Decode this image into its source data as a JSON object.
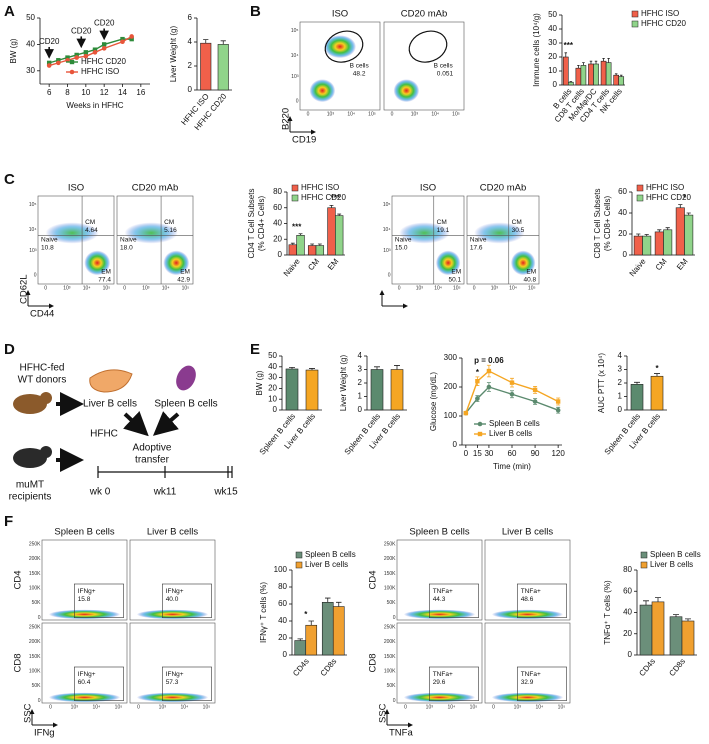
{
  "panel_labels": [
    "A",
    "B",
    "C",
    "D",
    "E",
    "F"
  ],
  "flow_ticks": {
    "log": [
      "0",
      "10³",
      "10⁴",
      "10⁵"
    ],
    "linear": [
      "0",
      "50K",
      "100K",
      "150K",
      "200K",
      "250K"
    ]
  },
  "flow_panels": [
    {
      "headers": [
        "ISO",
        "CD20 mAb"
      ],
      "y_axis": "B220",
      "x_axis": "CD19",
      "plots": [
        {
          "gates": [
            {
              "name": "B cells",
              "value": "48.2"
            }
          ]
        },
        {
          "gates": [
            {
              "name": "B cells",
              "value": "0.051"
            }
          ]
        }
      ]
    },
    {
      "headers": [
        "ISO",
        "CD20 mAb"
      ],
      "y_axis": "CD62L",
      "x_axis": "CD44",
      "plots": [
        {
          "gates": [
            {
              "name": "Naive",
              "value": "10.8"
            },
            {
              "name": "CM",
              "value": "4.64"
            },
            {
              "name": "EM",
              "value": "77.4"
            }
          ]
        },
        {
          "gates": [
            {
              "name": "Naive",
              "value": "18.0"
            },
            {
              "name": "CM",
              "value": "5.16"
            },
            {
              "name": "EM",
              "value": "42.9"
            }
          ]
        }
      ]
    },
    {
      "headers": [
        "ISO",
        "CD20 mAb"
      ],
      "plots": [
        {
          "gates": [
            {
              "name": "Naive",
              "value": "15.0"
            },
            {
              "name": "CM",
              "value": "19.1"
            },
            {
              "name": "EM",
              "value": "50.1"
            }
          ]
        },
        {
          "gates": [
            {
              "name": "Naive",
              "value": "17.6"
            },
            {
              "name": "CM",
              "value": "30.5"
            },
            {
              "name": "EM",
              "value": "40.8"
            }
          ]
        }
      ]
    },
    {
      "headers": [
        "Spleen B cells",
        "Liver B cells"
      ],
      "row_labels": [
        "CD4",
        "CD8"
      ],
      "y_axis": "SSC",
      "x_axis": "IFNg",
      "plots": [
        {
          "gates": [
            {
              "name": "IFNg+",
              "value": "15.8"
            }
          ]
        },
        {
          "gates": [
            {
              "name": "IFNg+",
              "value": "40.0"
            }
          ]
        },
        {
          "gates": [
            {
              "name": "IFNg+",
              "value": "60.4"
            }
          ]
        },
        {
          "gates": [
            {
              "name": "IFNg+",
              "value": "57.3"
            }
          ]
        }
      ]
    },
    {
      "headers": [
        "Spleen B cells",
        "Liver B cells"
      ],
      "row_labels": [
        "CD4",
        "CD8"
      ],
      "y_axis": "SSC",
      "x_axis": "TNFa",
      "plots": [
        {
          "gates": [
            {
              "name": "TNFa+",
              "value": "44.3"
            }
          ]
        },
        {
          "gates": [
            {
              "name": "TNFa+",
              "value": "48.6"
            }
          ]
        },
        {
          "gates": [
            {
              "name": "TNFa+",
              "value": "29.6"
            }
          ]
        },
        {
          "gates": [
            {
              "name": "TNFa+",
              "value": "32.9"
            }
          ]
        }
      ]
    }
  ],
  "diagram": {
    "donors": [
      "HFHC-fed",
      "WT donors"
    ],
    "liver": "Liver B cells",
    "spleen": "Spleen B cells",
    "transfer": [
      "Adoptive",
      "transfer"
    ],
    "diet": "HFHC",
    "recipients": [
      "muMT",
      "recipients"
    ],
    "timeline": [
      "wk 0",
      "wk11",
      "wk15"
    ]
  },
  "chart_data": [
    {
      "type": "line",
      "ylabel": "BW (g)",
      "xlabel": "Weeks in HFHC",
      "x": [
        6,
        7,
        8,
        9,
        10,
        11,
        12,
        14,
        15
      ],
      "xlim": [
        5,
        17
      ],
      "xticks": [
        6,
        8,
        10,
        12,
        14,
        16
      ],
      "ylim": [
        25,
        50
      ],
      "yticks": [
        30,
        40,
        50
      ],
      "series": [
        {
          "name": "HFHC CD20",
          "color": "#2e8b3a",
          "marker": "square",
          "values": [
            33,
            34,
            35,
            36,
            37,
            38,
            40,
            42,
            42
          ]
        },
        {
          "name": "HFHC ISO",
          "color": "#e8553a",
          "marker": "circle",
          "values": [
            32,
            33,
            34,
            35,
            35.5,
            37,
            38.5,
            41,
            43
          ]
        }
      ],
      "annotations": [
        "CD20",
        "CD20",
        "CD20"
      ]
    },
    {
      "type": "bar",
      "ylabel": "Liver Weight (g)",
      "categories": [
        "HFHC ISO",
        "HFHC CD20"
      ],
      "values": [
        3.9,
        3.8
      ],
      "errors": [
        0.3,
        0.3
      ],
      "colors": [
        "#f0604a",
        "#90d48a"
      ],
      "ylim": [
        0,
        6
      ],
      "yticks": [
        0,
        2,
        4,
        6
      ]
    },
    {
      "type": "bar",
      "ylabel": "Immune cells (10⁴/g)",
      "categories": [
        "B cells",
        "CD8 T cells",
        "Mo/Mφ/DC",
        "CD4 T cells",
        "NK cells"
      ],
      "series": [
        {
          "name": "HFHC ISO",
          "color": "#f0604a",
          "values": [
            20,
            12,
            15,
            17,
            7
          ],
          "errors": [
            3,
            2,
            2,
            2,
            1
          ]
        },
        {
          "name": "HFHC CD20",
          "color": "#90d48a",
          "values": [
            2,
            14,
            15,
            16,
            6
          ],
          "errors": [
            0.5,
            2,
            2,
            3,
            1
          ]
        }
      ],
      "ylim": [
        0,
        50
      ],
      "yticks": [
        0,
        10,
        20,
        30,
        40,
        50
      ],
      "annotations": [
        "***"
      ]
    },
    {
      "type": "bar",
      "ylabel": [
        "CD4 T Cell Subsets",
        "(% CD4+ Cells)"
      ],
      "categories": [
        "Naive",
        "CM",
        "EM"
      ],
      "series": [
        {
          "name": "HFHC ISO",
          "color": "#f0604a",
          "values": [
            13,
            12,
            60
          ],
          "errors": [
            2,
            2,
            3
          ]
        },
        {
          "name": "HFHC CD20",
          "color": "#90d48a",
          "values": [
            25,
            12,
            50
          ],
          "errors": [
            2,
            2,
            2
          ]
        }
      ],
      "ylim": [
        0,
        80
      ],
      "yticks": [
        0,
        20,
        40,
        60,
        80
      ],
      "annotations": [
        "***",
        "***"
      ]
    },
    {
      "type": "bar",
      "ylabel": [
        "CD8 T Cell Subsets",
        "(% CD8+ Cells)"
      ],
      "categories": [
        "Naive",
        "CM",
        "EM"
      ],
      "series": [
        {
          "name": "HFHC ISO",
          "color": "#f0604a",
          "values": [
            18,
            22,
            45
          ],
          "errors": [
            2,
            2,
            3
          ]
        },
        {
          "name": "HFHC CD20",
          "color": "#90d48a",
          "values": [
            18,
            24,
            38
          ],
          "errors": [
            1.5,
            2,
            2
          ]
        }
      ],
      "ylim": [
        0,
        60
      ],
      "yticks": [
        0,
        20,
        40,
        60
      ],
      "annotations": [
        "*"
      ]
    },
    {
      "type": "bar",
      "ylabel": "BW (g)",
      "categories": [
        "Spleen B cells",
        "Liver B cells"
      ],
      "values": [
        38,
        37
      ],
      "errors": [
        1.5,
        1.5
      ],
      "colors": [
        "#5b8a6e",
        "#f5a623"
      ],
      "ylim": [
        0,
        50
      ],
      "yticks": [
        0,
        10,
        20,
        30,
        40,
        50
      ]
    },
    {
      "type": "bar",
      "ylabel": "Liver Weight (g)",
      "categories": [
        "Spleen B cells",
        "Liver B cells"
      ],
      "values": [
        3,
        3
      ],
      "errors": [
        0.2,
        0.3
      ],
      "colors": [
        "#5b8a6e",
        "#f5a623"
      ],
      "ylim": [
        0,
        4
      ],
      "yticks": [
        0,
        1,
        2,
        3,
        4
      ]
    },
    {
      "type": "line",
      "ylabel": "Glucose (mg/dL)",
      "xlabel": "Time (min)",
      "x": [
        0,
        15,
        30,
        60,
        90,
        120
      ],
      "xlim": [
        -5,
        125
      ],
      "xticks": [
        0,
        15,
        30,
        60,
        90,
        120
      ],
      "ylim": [
        0,
        300
      ],
      "yticks": [
        0,
        100,
        200,
        300
      ],
      "series": [
        {
          "name": "Spleen B cells",
          "color": "#5b8a6e",
          "marker": "circle",
          "values": [
            110,
            160,
            200,
            175,
            150,
            120
          ],
          "errors": [
            5,
            10,
            15,
            12,
            10,
            10
          ]
        },
        {
          "name": "Liver B cells",
          "color": "#f5a623",
          "marker": "square",
          "values": [
            110,
            220,
            255,
            215,
            190,
            150
          ],
          "errors": [
            5,
            15,
            20,
            15,
            12,
            12
          ]
        }
      ],
      "annotations": [
        "*",
        "p = 0.06"
      ]
    },
    {
      "type": "bar",
      "ylabel": "AUC PTT (x 10⁴)",
      "categories": [
        "Spleen B cells",
        "Liver B cells"
      ],
      "values": [
        1.9,
        2.5
      ],
      "errors": [
        0.15,
        0.2
      ],
      "colors": [
        "#5b8a6e",
        "#f5a623"
      ],
      "ylim": [
        0,
        4
      ],
      "yticks": [
        0,
        1,
        2,
        3,
        4
      ],
      "annotations": [
        "*"
      ]
    },
    {
      "type": "bar",
      "ylabel": "IFNγ⁺ T cells (%)",
      "categories": [
        "CD4s",
        "CD8s"
      ],
      "series": [
        {
          "name": "Spleen B cells",
          "color": "#6b8f7a",
          "values": [
            17,
            62
          ],
          "errors": [
            2,
            5
          ]
        },
        {
          "name": "Liver B cells",
          "color": "#f0a030",
          "values": [
            35,
            57
          ],
          "errors": [
            5,
            5
          ]
        }
      ],
      "ylim": [
        0,
        100
      ],
      "yticks": [
        0,
        20,
        40,
        60,
        80,
        100
      ],
      "annotations": [
        "*"
      ]
    },
    {
      "type": "bar",
      "ylabel": "TNFα⁺ T cells (%)",
      "categories": [
        "CD4s",
        "CD8s"
      ],
      "series": [
        {
          "name": "Spleen B cells",
          "color": "#6b8f7a",
          "values": [
            47,
            36
          ],
          "errors": [
            4,
            2
          ]
        },
        {
          "name": "Liver B cells",
          "color": "#f0a030",
          "values": [
            50,
            32
          ],
          "errors": [
            4,
            2
          ]
        }
      ],
      "ylim": [
        0,
        80
      ],
      "yticks": [
        0,
        20,
        40,
        60,
        80
      ]
    }
  ]
}
